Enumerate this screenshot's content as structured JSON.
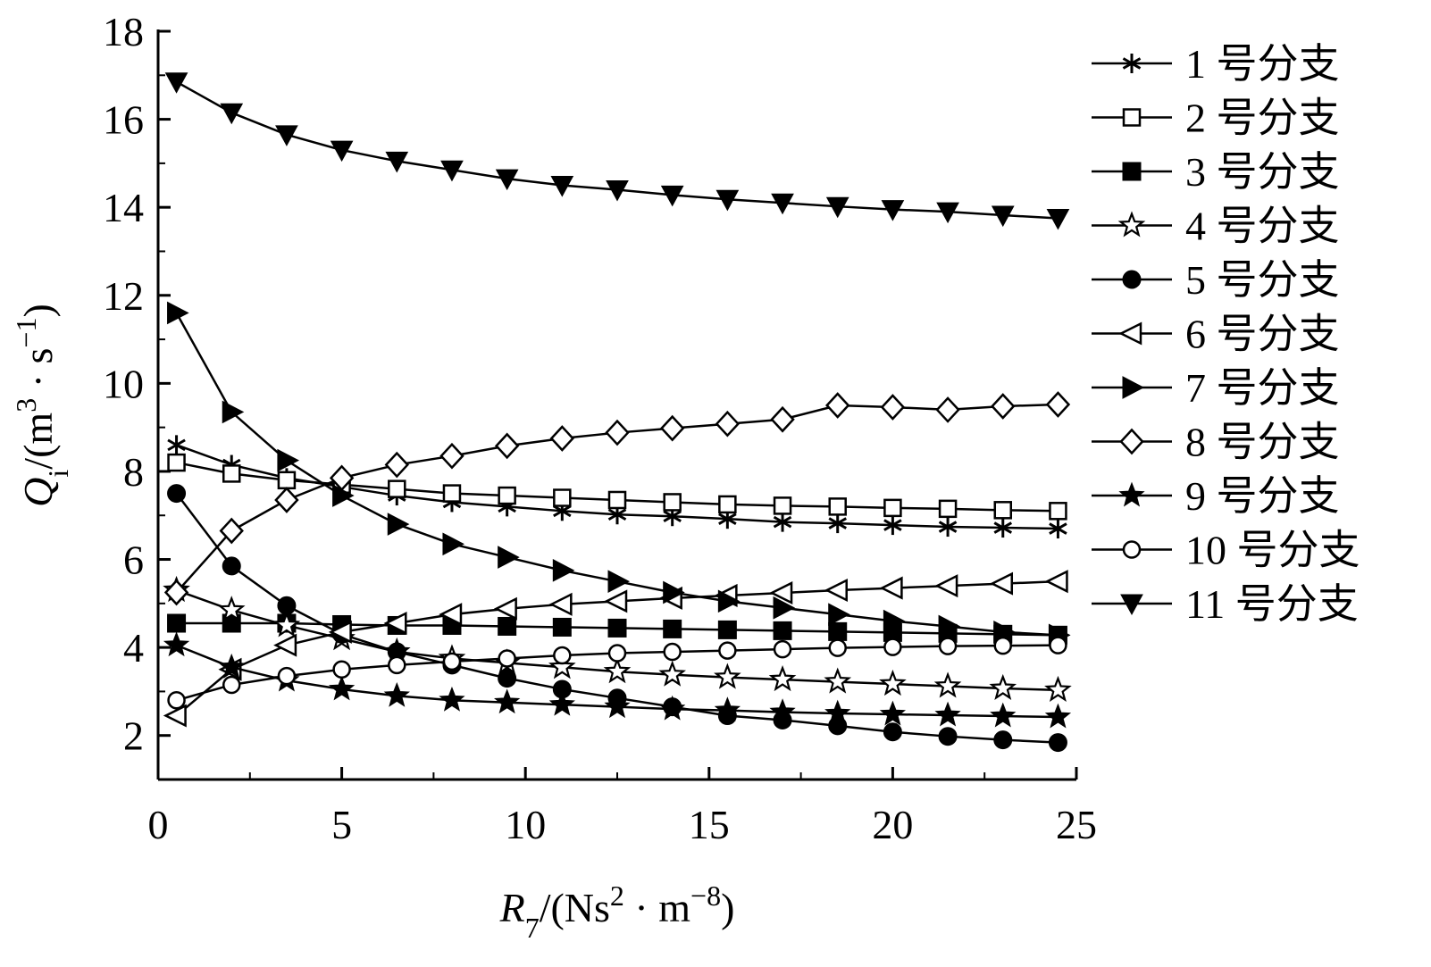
{
  "chart_data": {
    "type": "line",
    "xlabel": {
      "symbol": "R",
      "subscript": "7",
      "unit_open": "/(Ns",
      "unit_sup1": "2",
      "unit_mid": " · m",
      "unit_sup2": "−8",
      "unit_close": ")"
    },
    "ylabel": {
      "symbol": "Q",
      "subscript": "i",
      "unit_open": "/(m",
      "unit_sup1": "3",
      "unit_mid": " · s",
      "unit_sup2": "−1",
      "unit_close": ")"
    },
    "xlim": [
      0,
      25
    ],
    "ylim": [
      1,
      18
    ],
    "xticks": [
      0,
      5,
      10,
      15,
      20,
      25
    ],
    "yticks": [
      2,
      4,
      6,
      8,
      10,
      12,
      14,
      16,
      18
    ],
    "grid": false,
    "legend_position": "right",
    "x": [
      0.5,
      2,
      3.5,
      5,
      6.5,
      8,
      9.5,
      11,
      12.5,
      14,
      15.5,
      17,
      18.5,
      20,
      21.5,
      23,
      24.5
    ],
    "series": [
      {
        "name": "1 号分支",
        "marker": "asterisk",
        "values": [
          8.6,
          8.15,
          7.85,
          7.65,
          7.45,
          7.3,
          7.2,
          7.1,
          7.02,
          6.98,
          6.92,
          6.85,
          6.82,
          6.78,
          6.74,
          6.72,
          6.7
        ]
      },
      {
        "name": "2 号分支",
        "marker": "square-open",
        "values": [
          8.2,
          7.95,
          7.8,
          7.7,
          7.6,
          7.5,
          7.45,
          7.4,
          7.35,
          7.3,
          7.25,
          7.22,
          7.2,
          7.17,
          7.15,
          7.12,
          7.1
        ]
      },
      {
        "name": "3 号分支",
        "marker": "square-filled",
        "values": [
          4.55,
          4.55,
          4.55,
          4.52,
          4.5,
          4.5,
          4.48,
          4.46,
          4.44,
          4.42,
          4.4,
          4.38,
          4.36,
          4.34,
          4.32,
          4.3,
          4.28
        ]
      },
      {
        "name": "4 号分支",
        "marker": "star-open",
        "values": [
          5.3,
          4.85,
          4.5,
          4.2,
          3.9,
          3.75,
          3.65,
          3.55,
          3.45,
          3.38,
          3.32,
          3.27,
          3.22,
          3.17,
          3.12,
          3.07,
          3.03
        ]
      },
      {
        "name": "5 号分支",
        "marker": "circle-filled",
        "values": [
          7.5,
          5.85,
          4.95,
          4.3,
          3.9,
          3.6,
          3.3,
          3.05,
          2.85,
          2.65,
          2.45,
          2.35,
          2.22,
          2.08,
          1.98,
          1.9,
          1.84
        ]
      },
      {
        "name": "6 号分支",
        "marker": "triangle-left-open",
        "values": [
          2.45,
          3.5,
          4.05,
          4.35,
          4.55,
          4.75,
          4.88,
          4.98,
          5.05,
          5.12,
          5.18,
          5.24,
          5.3,
          5.35,
          5.4,
          5.45,
          5.5
        ]
      },
      {
        "name": "7 号分支",
        "marker": "triangle-right-filled",
        "values": [
          11.6,
          9.35,
          8.25,
          7.45,
          6.8,
          6.35,
          6.05,
          5.75,
          5.5,
          5.25,
          5.05,
          4.9,
          4.75,
          4.6,
          4.48,
          4.35,
          4.28
        ]
      },
      {
        "name": "8 号分支",
        "marker": "diamond-open",
        "values": [
          5.25,
          6.65,
          7.35,
          7.85,
          8.15,
          8.35,
          8.58,
          8.75,
          8.88,
          8.98,
          9.08,
          9.18,
          9.5,
          9.46,
          9.4,
          9.48,
          9.52
        ]
      },
      {
        "name": "9 号分支",
        "marker": "star-filled",
        "values": [
          4.05,
          3.55,
          3.25,
          3.05,
          2.9,
          2.8,
          2.75,
          2.7,
          2.65,
          2.6,
          2.57,
          2.53,
          2.5,
          2.48,
          2.46,
          2.44,
          2.42
        ]
      },
      {
        "name": "10 号分支",
        "marker": "circle-open",
        "values": [
          2.8,
          3.15,
          3.35,
          3.5,
          3.6,
          3.68,
          3.75,
          3.82,
          3.87,
          3.9,
          3.93,
          3.96,
          3.99,
          4.01,
          4.03,
          4.04,
          4.05
        ]
      },
      {
        "name": "11 号分支",
        "marker": "triangle-down-filled",
        "values": [
          16.85,
          16.15,
          15.65,
          15.3,
          15.05,
          14.85,
          14.65,
          14.5,
          14.4,
          14.28,
          14.18,
          14.1,
          14.02,
          13.95,
          13.9,
          13.82,
          13.75
        ]
      }
    ]
  }
}
